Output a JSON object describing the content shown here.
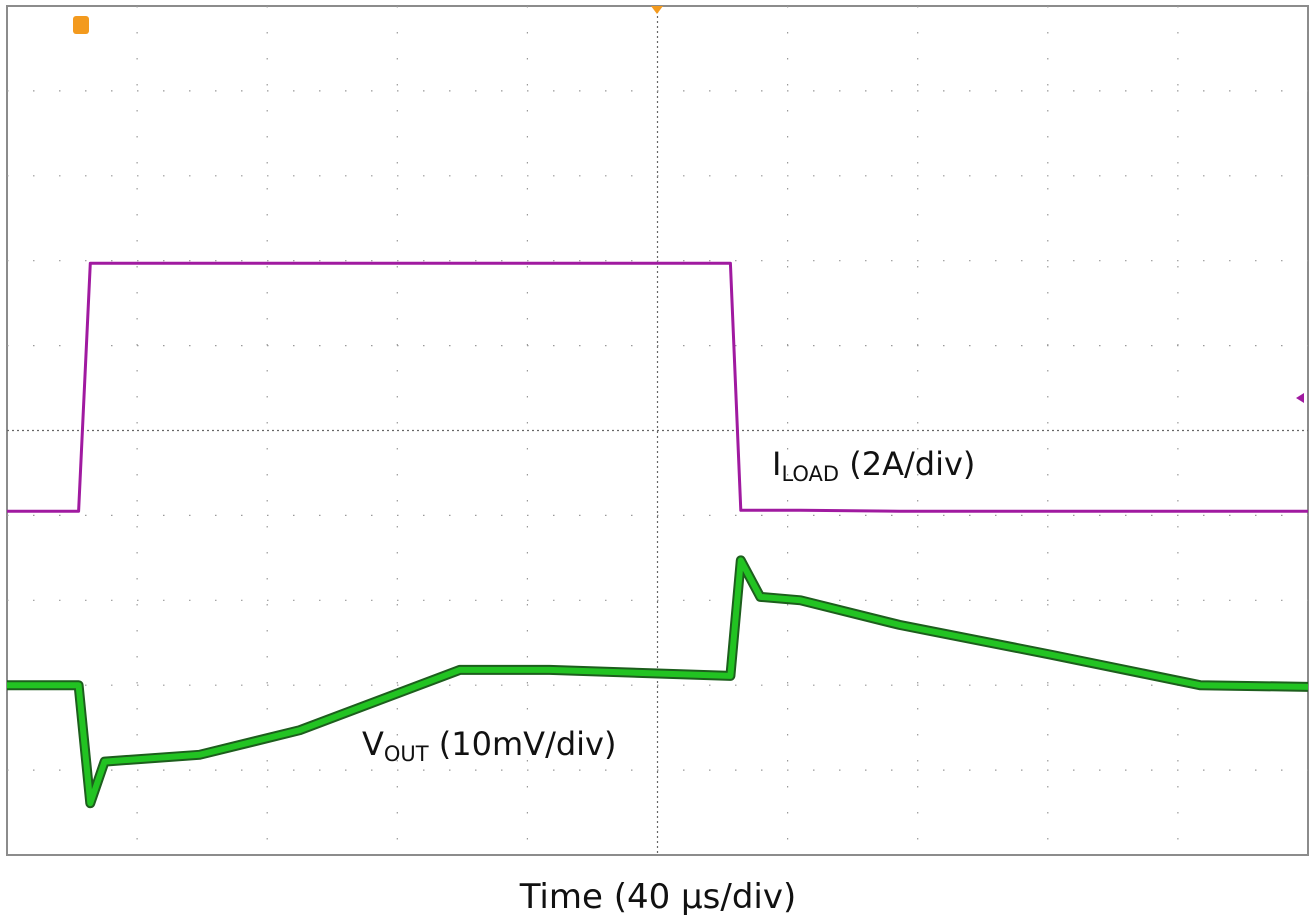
{
  "chart_data": {
    "type": "line",
    "x_label": "Time (40 µs/div)",
    "xlim": [
      0,
      10
    ],
    "ylim": [
      0,
      10
    ],
    "grid": true,
    "x": [
      0,
      0.55,
      0.64,
      0.75,
      1.48,
      2.25,
      3.48,
      4.17,
      5.56,
      5.64,
      5.79,
      6.1,
      6.86,
      8.02,
      9.17,
      10
    ],
    "series": [
      {
        "name": {
          "main": "I",
          "sub": "LOAD",
          "unit": " (2A/div)"
        },
        "color": "#a01aa0",
        "values": [
          4.05,
          4.05,
          6.97,
          6.97,
          6.97,
          6.97,
          6.97,
          6.97,
          6.97,
          4.06,
          4.06,
          4.06,
          4.05,
          4.05,
          4.05,
          4.05
        ]
      },
      {
        "name": {
          "main": "V",
          "sub": "OUT",
          "unit": " (10mV/div)"
        },
        "color": "#22c322",
        "values": [
          2.0,
          2.0,
          0.61,
          1.1,
          1.18,
          1.47,
          2.18,
          2.18,
          2.11,
          3.47,
          3.04,
          3.0,
          2.71,
          2.36,
          2.0,
          1.98
        ]
      }
    ]
  }
}
